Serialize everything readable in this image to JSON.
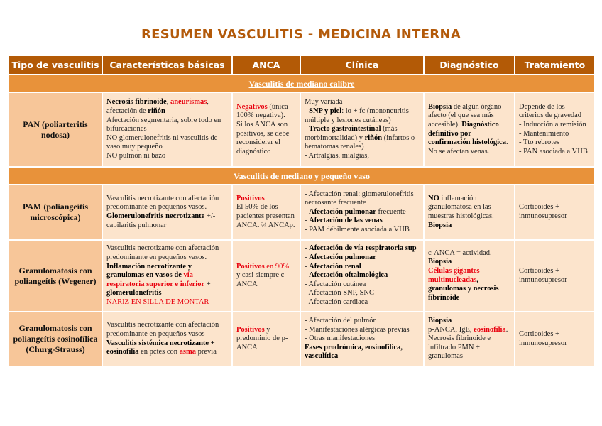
{
  "title": "RESUMEN VASCULITIS - MEDICINA INTERNA",
  "colors": {
    "title": "#b35a0a",
    "header_bg": "#b35a06",
    "section_bg": "#e8923a",
    "type_bg": "#f7c699",
    "cell_bg": "#fce4cc",
    "highlight": "#e8000e"
  },
  "headers": [
    "Tipo de vasculitis",
    "Características básicas",
    "ANCA",
    "Clínica",
    "Diagnóstico",
    "Tratamiento"
  ],
  "sections": [
    {
      "label": "Vasculitis de mediano calibre",
      "rows": [
        {
          "type": "PAN (poliarteritis nodosa)",
          "cells": [
            [
              [
                {
                  "t": "Necrosis fibrinoide",
                  "s": "b"
                },
                {
                  "t": ", "
                },
                {
                  "t": "aneurismas",
                  "s": "br"
                },
                {
                  "t": ","
                }
              ],
              [
                {
                  "t": "afectación de "
                },
                {
                  "t": "riñón",
                  "s": "b"
                }
              ],
              [
                {
                  "t": "Afectación segmentaria, sobre todo en bifurcaciones"
                }
              ],
              [
                {
                  "t": "NO glomerulonefritis ni vasculitis de vaso muy pequeño"
                }
              ],
              [
                {
                  "t": "NO pulmón ni bazo"
                }
              ]
            ],
            [
              [
                {
                  "t": "Negativos",
                  "s": "br"
                },
                {
                  "t": " (única 100% negativa)."
                }
              ],
              [
                {
                  "t": "Si los ANCA son positivos, se debe reconsiderar el diagnóstico"
                }
              ]
            ],
            [
              [
                {
                  "t": "Muy variada"
                }
              ],
              [
                {
                  "t": "- "
                },
                {
                  "t": "SNP y piel",
                  "s": "b"
                },
                {
                  "t": ": lo + fc (mononeuritis múltiple y lesiones cutáneas)"
                }
              ],
              [
                {
                  "t": "- "
                },
                {
                  "t": "Tracto gastrointestinal",
                  "s": "b"
                },
                {
                  "t": " (más morbimortalidad) y "
                },
                {
                  "t": "riñón",
                  "s": "b"
                },
                {
                  "t": " (infartos o hematomas renales)"
                }
              ],
              [
                {
                  "t": "- Artralgias, mialgias,"
                }
              ]
            ],
            [
              [
                {
                  "t": "Biopsia",
                  "s": "b"
                },
                {
                  "t": " de algún órgano afecto (el que sea más accesible). "
                },
                {
                  "t": "Diagnóstico definitivo por confirmación histológica",
                  "s": "b"
                },
                {
                  "t": "."
                }
              ],
              [
                {
                  "t": "No se afectan venas."
                }
              ]
            ],
            [
              [
                {
                  "t": "Depende de los criterios de gravedad"
                }
              ],
              [
                {
                  "t": "- Inducción a remisión"
                }
              ],
              [
                {
                  "t": "- Mantenimiento"
                }
              ],
              [
                {
                  "t": "- Tto rebrotes"
                }
              ],
              [
                {
                  "t": "- PAN asociada a VHB"
                }
              ]
            ]
          ]
        }
      ]
    },
    {
      "label": "Vasculitis de mediano y pequeño vaso",
      "rows": [
        {
          "type": "PAM (poliangeítis microscópica)",
          "cells": [
            [
              [
                {
                  "t": "Vasculitis necrotizante con afectación predominante en pequeños vasos."
                }
              ],
              [
                {
                  "t": "Glomerulonefritis necrotizante",
                  "s": "b"
                },
                {
                  "t": " +/- capilaritis pulmonar"
                }
              ]
            ],
            [
              [
                {
                  "t": "Positivos",
                  "s": "br"
                }
              ],
              [
                {
                  "t": "El 50% de los pacientes presentan ANCA. ¾ ANCAp."
                }
              ]
            ],
            [
              [
                {
                  "t": "- Afectación renal: glomerulonefritis necrosante frecuente"
                }
              ],
              [
                {
                  "t": "- "
                },
                {
                  "t": "Afectación pulmonar",
                  "s": "b"
                },
                {
                  "t": " frecuente"
                }
              ],
              [
                {
                  "t": "- "
                },
                {
                  "t": "Afectación de las venas",
                  "s": "b"
                }
              ],
              [
                {
                  "t": "- PAM débilmente  asociada a VHB"
                }
              ]
            ],
            [
              [
                {
                  "t": "NO",
                  "s": "b"
                },
                {
                  "t": " inflamación granulomatosa en las muestras histológicas."
                }
              ],
              [
                {
                  "t": "Biopsia",
                  "s": "b"
                }
              ]
            ],
            [
              [
                {
                  "t": "Corticoides + inmunosupresor"
                }
              ]
            ]
          ]
        },
        {
          "type": "Granulomatosis con poliangeítis (Wegener)",
          "cells": [
            [
              [
                {
                  "t": "Vasculitis necrotizante con afectación predominante en pequeños vasos."
                }
              ],
              [
                {
                  "t": "Inflamación necrotizante y granulomas en vasos de ",
                  "s": "b"
                },
                {
                  "t": "vía respiratoria superior e inferior",
                  "s": "br"
                },
                {
                  "t": " + "
                },
                {
                  "t": "glomerulonefritis",
                  "s": "b"
                }
              ],
              [
                {
                  "t": "NARIZ EN SILLA DE MONTAR",
                  "s": "r"
                }
              ]
            ],
            [
              [
                {
                  "t": "Positivos",
                  "s": "br"
                },
                {
                  "t": " en 90%",
                  "s": "r"
                }
              ],
              [
                {
                  "t": "y casi siempre c-ANCA"
                }
              ]
            ],
            [
              [
                {
                  "t": "- "
                },
                {
                  "t": "Afectación de vía respiratoria sup",
                  "s": "b"
                }
              ],
              [
                {
                  "t": "- "
                },
                {
                  "t": "Afectación pulmonar",
                  "s": "b"
                }
              ],
              [
                {
                  "t": "- "
                },
                {
                  "t": "Afectación renal",
                  "s": "b"
                }
              ],
              [
                {
                  "t": "- "
                },
                {
                  "t": "Afectación oftalmológica",
                  "s": "b"
                }
              ],
              [
                {
                  "t": "- Afectación cutánea"
                }
              ],
              [
                {
                  "t": "- Afectación SNP, SNC"
                }
              ],
              [
                {
                  "t": "- Afectación cardiaca"
                }
              ]
            ],
            [
              [
                {
                  "t": "c-ANCA = actividad."
                }
              ],
              [
                {
                  "t": "Biopsia",
                  "s": "b"
                }
              ],
              [
                {
                  "t": "Células gigantes multinucleadas",
                  "s": "br"
                },
                {
                  "t": ", granulomas y necrosis fibrinoide",
                  "s": "b"
                }
              ]
            ],
            [
              [
                {
                  "t": "Corticoides + inmunosupresor"
                }
              ]
            ]
          ]
        },
        {
          "type": "Granulomatosis con poliangeítis eosinofílica (Churg-Strauss)",
          "cells": [
            [
              [
                {
                  "t": "Vasculitis necrotizante con afectación predominante en pequeños vasos"
                }
              ],
              [
                {
                  "t": "Vasculitis sistémica necrotizante + eosinofilia",
                  "s": "b"
                },
                {
                  "t": " en pctes con "
                },
                {
                  "t": "asma",
                  "s": "br"
                },
                {
                  "t": " previa"
                }
              ]
            ],
            [
              [
                {
                  "t": "Positivos",
                  "s": "br"
                },
                {
                  "t": " y predominio de p-ANCA"
                }
              ]
            ],
            [
              [
                {
                  "t": "- Afectación del pulmón"
                }
              ],
              [
                {
                  "t": "- Manifestaciones alérgicas previas"
                }
              ],
              [
                {
                  "t": "- Otras manifestaciones"
                }
              ],
              [
                {
                  "t": "Fases prodrómica, eosinofílica, vasculítica",
                  "s": "b"
                }
              ]
            ],
            [
              [
                {
                  "t": "Biopsia",
                  "s": "b"
                }
              ],
              [
                {
                  "t": "p-ANCA, IgE, "
                },
                {
                  "t": "eosinofilia",
                  "s": "br"
                },
                {
                  "t": ". Necrosis fibrinoide e infiltrado PMN + granulomas"
                }
              ]
            ],
            [
              [
                {
                  "t": "Corticoides + inmunosupresor"
                }
              ]
            ]
          ]
        }
      ]
    }
  ]
}
